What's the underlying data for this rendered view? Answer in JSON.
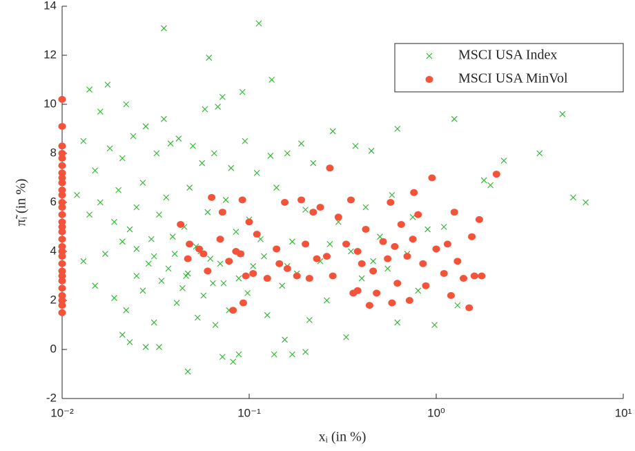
{
  "chart_data": {
    "type": "scatter",
    "xlabel": "xᵢ (in %)",
    "ylabel": "π̃ᵢ (in %)",
    "xscale": "log",
    "xlim": [
      0.01,
      10
    ],
    "xticks": [
      {
        "value": 0.01,
        "label": "10⁻²"
      },
      {
        "value": 0.1,
        "label": "10⁻¹"
      },
      {
        "value": 1,
        "label": "10⁰"
      },
      {
        "value": 10,
        "label": "10¹"
      }
    ],
    "ylim": [
      -2,
      14
    ],
    "yticks": [
      -2,
      0,
      2,
      4,
      6,
      8,
      10,
      12,
      14
    ],
    "legend": "upper right",
    "series": [
      {
        "name": "MSCI USA Index",
        "color": "#2bb52b",
        "marker": "x",
        "x": [
          0.1127,
          0.035,
          0.061,
          0.132,
          0.092,
          0.014,
          0.0175,
          0.016,
          0.022,
          0.035,
          0.058,
          0.068,
          0.072,
          0.013,
          0.015,
          0.018,
          0.021,
          0.024,
          0.028,
          0.032,
          0.038,
          0.042,
          0.05,
          0.056,
          0.065,
          0.08,
          0.095,
          0.11,
          0.13,
          0.16,
          0.19,
          0.22,
          0.28,
          0.37,
          0.45,
          0.62,
          1.25,
          4.73,
          3.57,
          2.3,
          1.8,
          1.95,
          5.4,
          6.3,
          0.012,
          0.014,
          0.016,
          0.019,
          0.02,
          0.023,
          0.025,
          0.027,
          0.03,
          0.033,
          0.036,
          0.04,
          0.045,
          0.048,
          0.052,
          0.06,
          0.07,
          0.075,
          0.085,
          0.1,
          0.12,
          0.14,
          0.17,
          0.2,
          0.24,
          0.3,
          0.35,
          0.42,
          0.5,
          0.58,
          0.75,
          0.9,
          1.1,
          0.013,
          0.015,
          0.017,
          0.019,
          0.021,
          0.022,
          0.025,
          0.027,
          0.029,
          0.031,
          0.034,
          0.037,
          0.041,
          0.044,
          0.047,
          0.053,
          0.057,
          0.062,
          0.066,
          0.073,
          0.078,
          0.088,
          0.098,
          0.105,
          0.125,
          0.15,
          0.18,
          0.21,
          0.26,
          0.33,
          0.4,
          0.55,
          0.62,
          0.8,
          0.98,
          1.3,
          0.021,
          0.023,
          0.028,
          0.033,
          0.047,
          0.072,
          0.082,
          0.088,
          0.136,
          0.155,
          0.17,
          0.2,
          0.025,
          0.031,
          0.039,
          0.046,
          0.055,
          0.064,
          0.09,
          0.115,
          0.16,
          0.27,
          0.46,
          0.7
        ],
        "values": [
          13.3,
          13.1,
          11.9,
          11.0,
          10.5,
          10.6,
          10.8,
          9.7,
          10.0,
          9.4,
          9.8,
          9.9,
          10.3,
          8.5,
          7.3,
          8.2,
          7.8,
          8.7,
          9.1,
          8.0,
          8.4,
          8.6,
          8.3,
          7.6,
          8.0,
          7.4,
          8.5,
          7.2,
          7.9,
          8.0,
          8.4,
          7.6,
          8.9,
          8.3,
          8.1,
          9.0,
          9.4,
          9.6,
          8.0,
          7.7,
          6.9,
          6.7,
          6.2,
          6.0,
          6.3,
          5.5,
          6.0,
          5.2,
          6.5,
          4.9,
          5.8,
          6.8,
          4.5,
          5.5,
          6.2,
          3.9,
          5.0,
          6.6,
          4.2,
          5.6,
          3.5,
          6.1,
          4.8,
          5.3,
          3.8,
          6.6,
          4.4,
          5.7,
          3.6,
          5.2,
          4.0,
          5.8,
          4.6,
          6.3,
          5.4,
          4.9,
          5.0,
          3.6,
          2.6,
          3.9,
          2.1,
          4.4,
          1.6,
          3.0,
          2.4,
          3.5,
          1.1,
          2.8,
          3.3,
          1.9,
          2.5,
          3.1,
          1.3,
          2.2,
          3.7,
          1.0,
          2.7,
          1.6,
          2.9,
          2.3,
          3.4,
          1.4,
          2.6,
          3.1,
          1.2,
          2.0,
          0.5,
          2.9,
          3.3,
          1.1,
          2.4,
          1.0,
          1.8,
          0.6,
          0.3,
          0.1,
          0.1,
          -0.9,
          -0.3,
          -0.5,
          -0.2,
          -0.2,
          0.4,
          -0.2,
          -0.1,
          4.1,
          3.8,
          4.6,
          3.0,
          4.0,
          2.7,
          3.9,
          4.5,
          3.4,
          4.3,
          3.6,
          3.9
        ]
      },
      {
        "name": "MSCI USA MinVol",
        "color": "#f4533a",
        "marker": "o",
        "x": [
          0.01,
          0.01,
          0.01,
          0.01,
          0.01,
          0.01,
          0.01,
          0.01,
          0.01,
          0.01,
          0.01,
          0.01,
          0.01,
          0.01,
          0.01,
          0.01,
          0.01,
          0.01,
          0.01,
          0.01,
          0.01,
          0.01,
          0.01,
          0.01,
          0.01,
          0.01,
          0.01,
          0.01,
          0.01,
          0.01,
          0.043,
          0.047,
          0.048,
          0.054,
          0.057,
          0.06,
          0.063,
          0.07,
          0.072,
          0.078,
          0.082,
          0.085,
          0.09,
          0.092,
          0.093,
          0.096,
          0.1,
          0.105,
          0.11,
          0.125,
          0.14,
          0.145,
          0.155,
          0.16,
          0.18,
          0.19,
          0.2,
          0.21,
          0.22,
          0.24,
          0.26,
          0.27,
          0.28,
          0.3,
          0.33,
          0.35,
          0.36,
          0.38,
          0.4,
          0.42,
          0.44,
          0.46,
          0.48,
          0.52,
          0.55,
          0.57,
          0.6,
          0.62,
          0.65,
          0.7,
          0.72,
          0.75,
          0.8,
          0.85,
          0.88,
          0.95,
          1.0,
          1.1,
          1.15,
          1.2,
          1.3,
          1.4,
          1.5,
          1.55,
          1.6,
          1.7,
          1.75,
          2.1,
          0.58,
          0.76,
          0.38,
          0.23,
          1.25
        ],
        "values": [
          10.2,
          9.1,
          8.3,
          8.0,
          7.8,
          7.5,
          7.2,
          7.0,
          6.8,
          6.5,
          6.3,
          6.0,
          5.8,
          5.5,
          5.2,
          5.0,
          4.8,
          4.5,
          4.2,
          4.0,
          3.8,
          3.5,
          3.2,
          3.0,
          2.8,
          2.5,
          2.2,
          2.0,
          1.8,
          1.5,
          5.1,
          3.7,
          4.3,
          4.1,
          3.9,
          3.2,
          6.2,
          4.5,
          5.6,
          3.6,
          1.6,
          4.0,
          3.9,
          6.1,
          1.9,
          3.0,
          5.2,
          3.1,
          4.7,
          2.9,
          4.1,
          3.5,
          6.0,
          3.3,
          3.0,
          6.1,
          4.3,
          2.9,
          5.6,
          5.8,
          3.8,
          7.4,
          3.0,
          5.4,
          4.3,
          6.1,
          2.3,
          4.0,
          3.5,
          4.9,
          1.8,
          3.2,
          2.3,
          4.4,
          3.7,
          6.0,
          4.2,
          2.7,
          5.1,
          3.8,
          2.0,
          4.5,
          5.5,
          3.5,
          2.6,
          7.0,
          4.1,
          3.1,
          4.3,
          2.2,
          3.6,
          2.9,
          1.7,
          4.6,
          3.0,
          5.3,
          3.0,
          7.15,
          1.9,
          6.4,
          2.4,
          3.7,
          5.6
        ]
      }
    ]
  }
}
